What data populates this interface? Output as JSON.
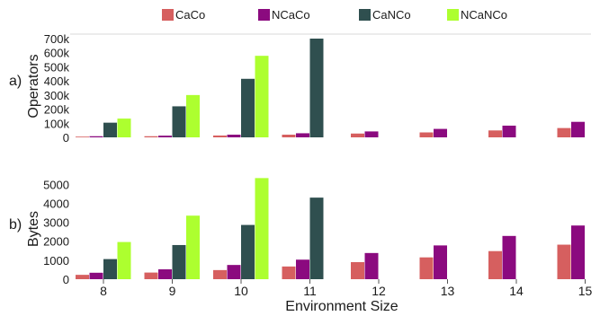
{
  "chart_data": [
    {
      "panel_label": "a)",
      "type": "bar",
      "ylabel": "Operators",
      "xlabel": "",
      "categories": [
        "8",
        "9",
        "10",
        "11",
        "12",
        "13",
        "14",
        "15"
      ],
      "ylim": [
        0,
        700000
      ],
      "yticks": [
        0,
        100000,
        200000,
        300000,
        400000,
        500000,
        600000,
        700000
      ],
      "ytick_labels": [
        "0",
        "100k",
        "200k",
        "300k",
        "400k",
        "500k",
        "600k",
        "700k"
      ],
      "series": [
        {
          "name": "CaCo",
          "color": "#d65f5f",
          "values": [
            5000,
            8000,
            13000,
            19000,
            27000,
            35000,
            49000,
            66000
          ]
        },
        {
          "name": "NCaCo",
          "color": "#8b0a7f",
          "values": [
            8000,
            12000,
            19000,
            29000,
            42000,
            60000,
            83000,
            110000
          ]
        },
        {
          "name": "CaNCo",
          "color": "#2f4f4f",
          "values": [
            104000,
            220000,
            415000,
            700000,
            null,
            null,
            null,
            null
          ]
        },
        {
          "name": "NCaNCo",
          "color": "#adff2f",
          "values": [
            133000,
            300000,
            578000,
            null,
            null,
            null,
            null,
            null
          ]
        }
      ],
      "grid": false,
      "legend": "top"
    },
    {
      "panel_label": "b)",
      "type": "bar",
      "ylabel": "Bytes",
      "xlabel": "Environment Size",
      "categories": [
        "8",
        "9",
        "10",
        "11",
        "12",
        "13",
        "14",
        "15"
      ],
      "ylim": [
        0,
        5300
      ],
      "yticks": [
        0,
        1000,
        2000,
        3000,
        4000,
        5000
      ],
      "ytick_labels": [
        "0",
        "1000",
        "2000",
        "3000",
        "4000",
        "5000"
      ],
      "series": [
        {
          "name": "CaCo",
          "color": "#d65f5f",
          "values": [
            230,
            350,
            480,
            670,
            900,
            1150,
            1480,
            1820
          ]
        },
        {
          "name": "NCaCo",
          "color": "#8b0a7f",
          "values": [
            340,
            520,
            750,
            1030,
            1380,
            1780,
            2280,
            2830
          ]
        },
        {
          "name": "CaNCo",
          "color": "#2f4f4f",
          "values": [
            1060,
            1800,
            2860,
            4300,
            null,
            null,
            null,
            null
          ]
        },
        {
          "name": "NCaNCo",
          "color": "#adff2f",
          "values": [
            1960,
            3350,
            5330,
            null,
            null,
            null,
            null,
            null
          ]
        }
      ],
      "grid": false,
      "legend": "top"
    }
  ]
}
